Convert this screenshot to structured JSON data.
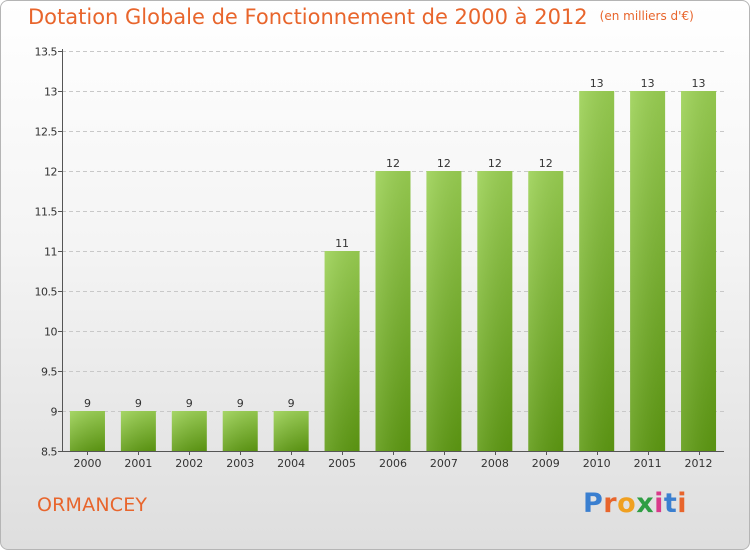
{
  "header": {
    "title": "Dotation Globale de Fonctionnement de 2000 à 2012",
    "unit": "(en milliers d'€)"
  },
  "footer": {
    "commune": "ORMANCEY",
    "logo": "Proxiti"
  },
  "colors": {
    "accent": "#e8652c",
    "bar_top": "#9bd153",
    "bar_bottom": "#5e9a12",
    "grid": "#c8c8c8"
  },
  "chart_data": {
    "type": "bar",
    "title": "Dotation Globale de Fonctionnement de 2000 à 2012",
    "subtitle": "(en milliers d'€)",
    "categories": [
      "2000",
      "2001",
      "2002",
      "2003",
      "2004",
      "2005",
      "2006",
      "2007",
      "2008",
      "2009",
      "2010",
      "2011",
      "2012"
    ],
    "values": [
      9,
      9,
      9,
      9,
      9,
      11,
      12,
      12,
      12,
      12,
      13,
      13,
      13
    ],
    "value_labels": [
      "9",
      "9",
      "9",
      "9",
      "9",
      "11",
      "12",
      "12",
      "12",
      "12",
      "13",
      "13",
      "13"
    ],
    "ylim": [
      8.5,
      13.5
    ],
    "yticks": [
      8.5,
      9,
      9.5,
      10,
      10.5,
      11,
      11.5,
      12,
      12.5,
      13,
      13.5
    ],
    "ytick_labels": [
      "8.5",
      "9",
      "9.5",
      "10",
      "10.5",
      "11",
      "11.5",
      "12",
      "12.5",
      "13",
      "13.5"
    ],
    "grid": "horizontal dashed",
    "xlabel": "",
    "ylabel": ""
  }
}
